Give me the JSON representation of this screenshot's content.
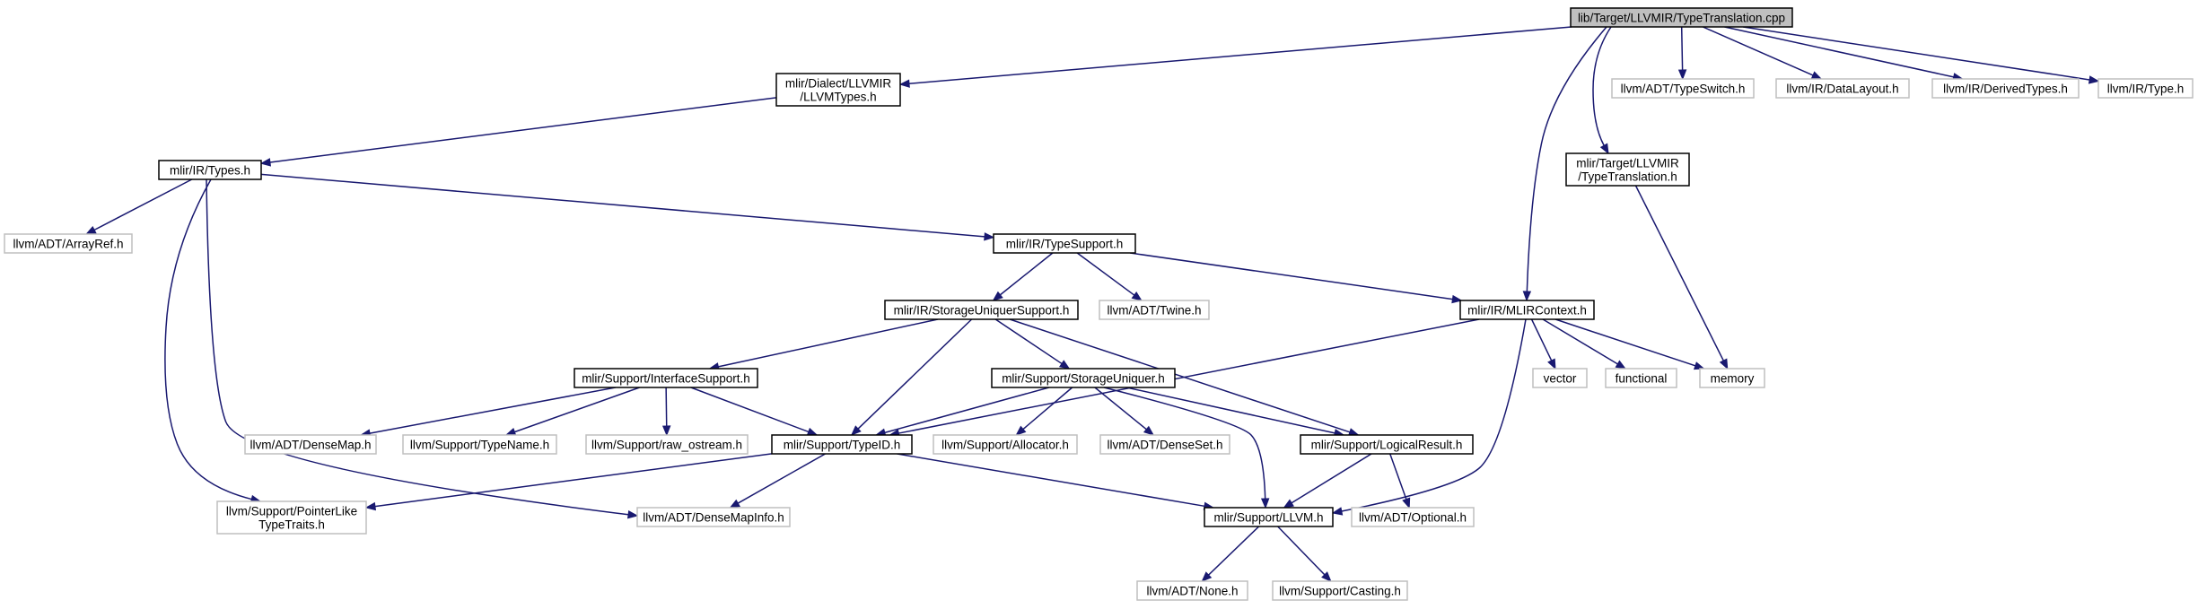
{
  "graph": {
    "nodes": [
      {
        "id": "root",
        "lines": [
          "lib/Target/LLVMIR/TypeTranslation.cpp"
        ],
        "kind": "root"
      },
      {
        "id": "llvmtypes",
        "lines": [
          "mlir/Dialect/LLVMIR",
          "/LLVMTypes.h"
        ],
        "kind": "main"
      },
      {
        "id": "typeswitch",
        "lines": [
          "llvm/ADT/TypeSwitch.h"
        ],
        "kind": "ext"
      },
      {
        "id": "datalayout",
        "lines": [
          "llvm/IR/DataLayout.h"
        ],
        "kind": "ext"
      },
      {
        "id": "derivedtypes",
        "lines": [
          "llvm/IR/DerivedTypes.h"
        ],
        "kind": "ext"
      },
      {
        "id": "irtype",
        "lines": [
          "llvm/IR/Type.h"
        ],
        "kind": "ext"
      },
      {
        "id": "typetrans_h",
        "lines": [
          "mlir/Target/LLVMIR",
          "/TypeTranslation.h"
        ],
        "kind": "main"
      },
      {
        "id": "types",
        "lines": [
          "mlir/IR/Types.h"
        ],
        "kind": "main"
      },
      {
        "id": "arrayref",
        "lines": [
          "llvm/ADT/ArrayRef.h"
        ],
        "kind": "ext"
      },
      {
        "id": "typesupport",
        "lines": [
          "mlir/IR/TypeSupport.h"
        ],
        "kind": "main"
      },
      {
        "id": "storageuniquersupport",
        "lines": [
          "mlir/IR/StorageUniquerSupport.h"
        ],
        "kind": "main"
      },
      {
        "id": "twine",
        "lines": [
          "llvm/ADT/Twine.h"
        ],
        "kind": "ext"
      },
      {
        "id": "mlircontext",
        "lines": [
          "mlir/IR/MLIRContext.h"
        ],
        "kind": "main"
      },
      {
        "id": "interfacesupport",
        "lines": [
          "mlir/Support/InterfaceSupport.h"
        ],
        "kind": "main"
      },
      {
        "id": "storageuniquer",
        "lines": [
          "mlir/Support/StorageUniquer.h"
        ],
        "kind": "main"
      },
      {
        "id": "vector",
        "lines": [
          "vector"
        ],
        "kind": "ext"
      },
      {
        "id": "functional",
        "lines": [
          "functional"
        ],
        "kind": "ext"
      },
      {
        "id": "memory",
        "lines": [
          "memory"
        ],
        "kind": "ext"
      },
      {
        "id": "densemap",
        "lines": [
          "llvm/ADT/DenseMap.h"
        ],
        "kind": "ext"
      },
      {
        "id": "typename",
        "lines": [
          "llvm/Support/TypeName.h"
        ],
        "kind": "ext"
      },
      {
        "id": "rawostream",
        "lines": [
          "llvm/Support/raw_ostream.h"
        ],
        "kind": "ext"
      },
      {
        "id": "typeid",
        "lines": [
          "mlir/Support/TypeID.h"
        ],
        "kind": "main"
      },
      {
        "id": "allocator",
        "lines": [
          "llvm/Support/Allocator.h"
        ],
        "kind": "ext"
      },
      {
        "id": "denseset",
        "lines": [
          "llvm/ADT/DenseSet.h"
        ],
        "kind": "ext"
      },
      {
        "id": "logicalresult",
        "lines": [
          "mlir/Support/LogicalResult.h"
        ],
        "kind": "main"
      },
      {
        "id": "pointerlike",
        "lines": [
          "llvm/Support/PointerLike",
          "TypeTraits.h"
        ],
        "kind": "ext"
      },
      {
        "id": "densemapinfo",
        "lines": [
          "llvm/ADT/DenseMapInfo.h"
        ],
        "kind": "ext"
      },
      {
        "id": "llvm_h",
        "lines": [
          "mlir/Support/LLVM.h"
        ],
        "kind": "main"
      },
      {
        "id": "optional",
        "lines": [
          "llvm/ADT/Optional.h"
        ],
        "kind": "ext"
      },
      {
        "id": "none",
        "lines": [
          "llvm/ADT/None.h"
        ],
        "kind": "ext"
      },
      {
        "id": "casting",
        "lines": [
          "llvm/Support/Casting.h"
        ],
        "kind": "ext"
      }
    ],
    "edges": [
      [
        "root",
        "llvmtypes"
      ],
      [
        "root",
        "typeswitch"
      ],
      [
        "root",
        "datalayout"
      ],
      [
        "root",
        "derivedtypes"
      ],
      [
        "root",
        "irtype"
      ],
      [
        "root",
        "typetrans_h"
      ],
      [
        "root",
        "mlircontext"
      ],
      [
        "llvmtypes",
        "types"
      ],
      [
        "typetrans_h",
        "memory"
      ],
      [
        "types",
        "arrayref"
      ],
      [
        "types",
        "typesupport"
      ],
      [
        "types",
        "pointerlike"
      ],
      [
        "types",
        "densemapinfo"
      ],
      [
        "typesupport",
        "storageuniquersupport"
      ],
      [
        "typesupport",
        "twine"
      ],
      [
        "typesupport",
        "mlircontext"
      ],
      [
        "storageuniquersupport",
        "interfacesupport"
      ],
      [
        "storageuniquersupport",
        "storageuniquer"
      ],
      [
        "storageuniquersupport",
        "typeid"
      ],
      [
        "storageuniquersupport",
        "logicalresult"
      ],
      [
        "mlircontext",
        "typeid"
      ],
      [
        "mlircontext",
        "vector"
      ],
      [
        "mlircontext",
        "functional"
      ],
      [
        "mlircontext",
        "memory"
      ],
      [
        "mlircontext",
        "llvm_h"
      ],
      [
        "interfacesupport",
        "densemap"
      ],
      [
        "interfacesupport",
        "typename"
      ],
      [
        "interfacesupport",
        "rawostream"
      ],
      [
        "interfacesupport",
        "typeid"
      ],
      [
        "storageuniquer",
        "typeid"
      ],
      [
        "storageuniquer",
        "allocator"
      ],
      [
        "storageuniquer",
        "denseset"
      ],
      [
        "storageuniquer",
        "logicalresult"
      ],
      [
        "storageuniquer",
        "llvm_h"
      ],
      [
        "typeid",
        "pointerlike"
      ],
      [
        "typeid",
        "densemapinfo"
      ],
      [
        "typeid",
        "llvm_h"
      ],
      [
        "logicalresult",
        "llvm_h"
      ],
      [
        "logicalresult",
        "optional"
      ],
      [
        "llvm_h",
        "none"
      ],
      [
        "llvm_h",
        "casting"
      ]
    ]
  }
}
